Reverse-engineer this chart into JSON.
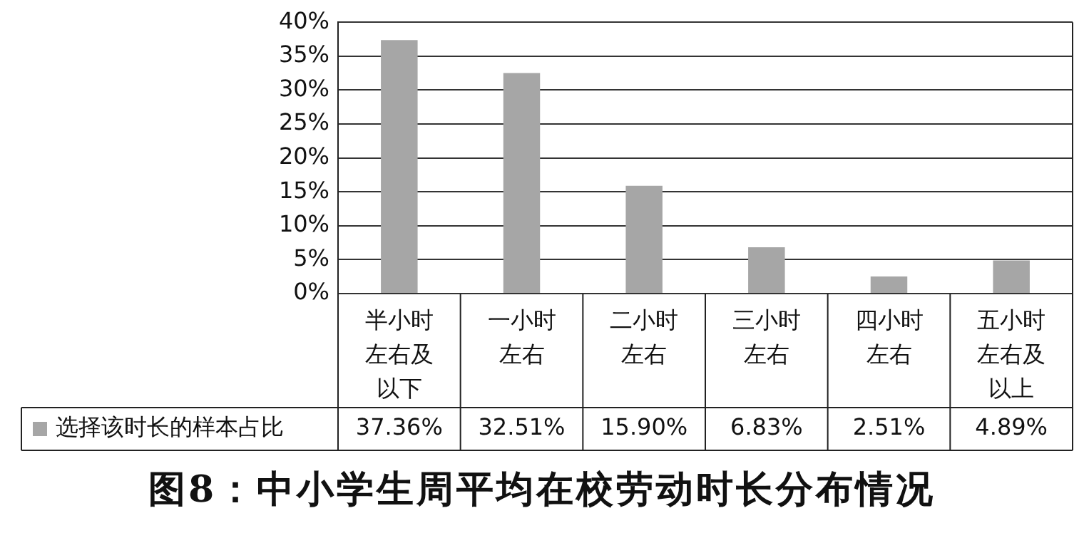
{
  "chart_data": {
    "type": "bar",
    "title": "图8：中小学生周平均在校劳动时长分布情况",
    "categories": [
      "半小时左右及以下",
      "一小时左右",
      "二小时左右",
      "三小时左右",
      "四小时左右",
      "五小时左右及以上"
    ],
    "series": [
      {
        "name": "选择该时长的样本占比",
        "color": "#a6a6a6",
        "values": [
          37.36,
          32.51,
          15.9,
          6.83,
          2.51,
          4.89
        ],
        "value_labels": [
          "37.36%",
          "32.51%",
          "15.90%",
          "6.83%",
          "2.51%",
          "4.89%"
        ]
      }
    ],
    "ylim": [
      0,
      40
    ],
    "yticks": [
      {
        "value": 0,
        "label": "0%"
      },
      {
        "value": 5,
        "label": "5%"
      },
      {
        "value": 10,
        "label": "10%"
      },
      {
        "value": 15,
        "label": "15%"
      },
      {
        "value": 20,
        "label": "20%"
      },
      {
        "value": 25,
        "label": "25%"
      },
      {
        "value": 30,
        "label": "30%"
      },
      {
        "value": 35,
        "label": "35%"
      },
      {
        "value": 40,
        "label": "40%"
      }
    ],
    "grid": "y",
    "legend": "bottom"
  }
}
